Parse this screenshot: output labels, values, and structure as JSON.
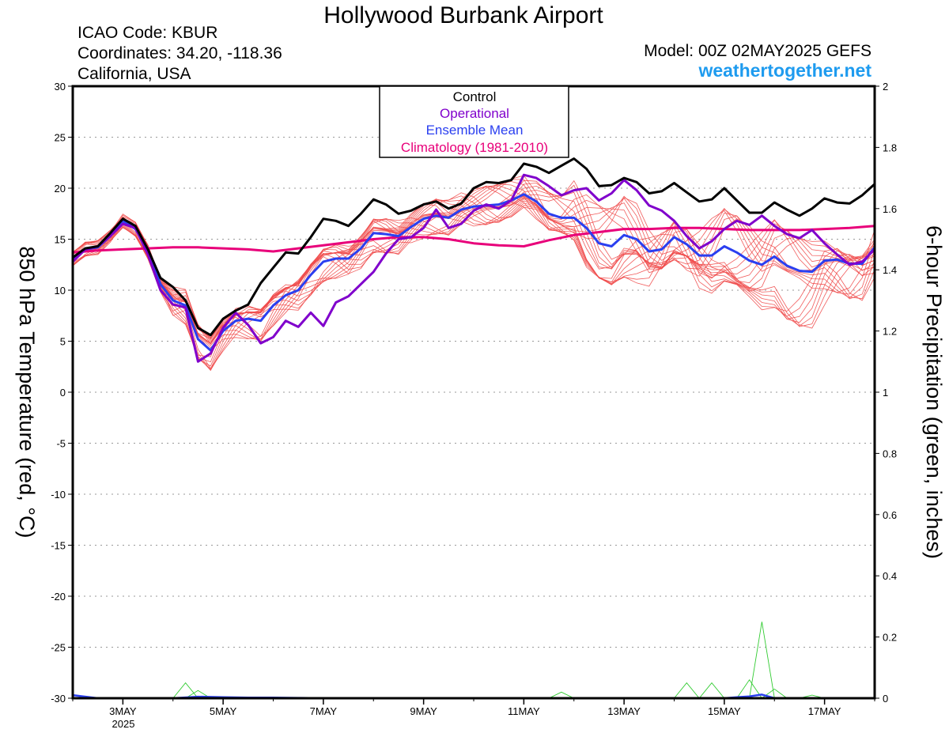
{
  "header": {
    "title": "Hollywood Burbank Airport",
    "icao": "ICAO Code: KBUR",
    "coords": "Coordinates: 34.20, -118.36",
    "region": "California, USA",
    "model": "Model: 00Z 02MAY2025 GEFS",
    "site": "weathertogether.net"
  },
  "chart_data": {
    "type": "line",
    "ylabel_left": "850 hPa Temperature (red, °C)",
    "ylabel_right": "6-hour Precipitation (green, inches)",
    "x_tick_labels": [
      "3MAY",
      "5MAY",
      "7MAY",
      "9MAY",
      "11MAY",
      "13MAY",
      "15MAY",
      "17MAY"
    ],
    "x_tick_positions_days": [
      3,
      5,
      7,
      9,
      11,
      13,
      15,
      17
    ],
    "x_year_label": "2025",
    "xlim_days": [
      2.0,
      18.0
    ],
    "ylim_left": [
      -30,
      30
    ],
    "yticks_left": [
      30,
      25,
      20,
      15,
      10,
      5,
      0,
      -5,
      -10,
      -15,
      -20,
      -25,
      -30
    ],
    "ylim_right": [
      0,
      2
    ],
    "yticks_right": [
      "2",
      "1.8",
      "1.6",
      "1.4",
      "1.2",
      "1",
      "0.8",
      "0.6",
      "0.4",
      "0.2",
      "0"
    ],
    "grid": "dotted horizontal",
    "legend": {
      "placement": "top-center",
      "entries": [
        {
          "label": "Control",
          "color": "#000000"
        },
        {
          "label": "Operational",
          "color": "#8000cc"
        },
        {
          "label": "Ensemble Mean",
          "color": "#2a3ff0"
        },
        {
          "label": "Climatology (1981-2010)",
          "color": "#e8007a"
        }
      ]
    },
    "colors": {
      "members": "#f04a4a",
      "precip": "#33cc33"
    },
    "series": [
      {
        "name": "Control",
        "x": [
          2.0,
          2.25,
          2.5,
          2.75,
          3.0,
          3.25,
          3.5,
          3.75,
          4.0,
          4.25,
          4.5,
          4.75,
          5.0,
          5.25,
          5.5,
          5.75,
          6.0,
          6.25,
          6.5,
          6.75,
          7.0,
          7.25,
          7.5,
          7.75,
          8.0,
          8.25,
          8.5,
          8.75,
          9.0,
          9.25,
          9.5,
          9.75,
          10.0,
          10.25,
          10.5,
          10.75,
          11.0,
          11.25,
          11.5,
          11.75,
          12.0,
          12.25,
          12.5,
          12.75,
          13.0,
          13.25,
          13.5,
          13.75,
          14.0,
          14.25,
          14.5,
          14.75,
          15.0,
          15.25,
          15.5,
          15.75,
          16.0,
          16.25,
          16.5,
          16.75,
          17.0,
          17.25,
          17.5,
          17.75,
          18.0
        ],
        "values": [
          13.2,
          14.1,
          14.3,
          15.6,
          17.0,
          16.3,
          14.0,
          11.2,
          10.3,
          9.0,
          6.3,
          5.6,
          7.2,
          8.0,
          8.6,
          10.7,
          12.2,
          13.7,
          13.6,
          15.2,
          17.0,
          16.8,
          16.3,
          17.5,
          18.9,
          18.4,
          17.5,
          17.8,
          18.4,
          18.7,
          18.0,
          18.5,
          20.0,
          20.6,
          20.5,
          20.8,
          22.4,
          22.1,
          21.5,
          22.2,
          22.9,
          21.9,
          20.2,
          20.3,
          21.0,
          20.6,
          19.5,
          19.7,
          20.5,
          19.6,
          18.7,
          18.9,
          20.0,
          18.8,
          17.6,
          17.6,
          18.6,
          17.9,
          17.3,
          18.0,
          19.0,
          18.6,
          18.5,
          19.3,
          20.4
        ]
      },
      {
        "name": "Operational",
        "x": [
          2.0,
          2.25,
          2.5,
          2.75,
          3.0,
          3.25,
          3.5,
          3.75,
          4.0,
          4.25,
          4.5,
          4.75,
          5.0,
          5.25,
          5.5,
          5.75,
          6.0,
          6.25,
          6.5,
          6.75,
          7.0,
          7.25,
          7.5,
          7.75,
          8.0,
          8.25,
          8.5,
          8.75,
          9.0,
          9.25,
          9.5,
          9.75,
          10.0,
          10.25,
          10.5,
          10.75,
          11.0,
          11.25,
          11.5,
          11.75,
          12.0,
          12.25,
          12.5,
          12.75,
          13.0,
          13.25,
          13.5,
          13.75,
          14.0,
          14.25,
          14.5,
          14.75,
          15.0,
          15.25,
          15.5,
          15.75,
          16.0,
          16.25,
          16.5,
          16.75,
          17.0,
          17.25,
          17.5,
          17.75,
          18.0
        ],
        "values": [
          12.8,
          14.0,
          14.3,
          15.3,
          16.5,
          16.1,
          13.5,
          10.0,
          8.6,
          8.3,
          3.0,
          3.8,
          6.3,
          7.8,
          6.6,
          4.8,
          5.4,
          7.0,
          6.4,
          7.8,
          6.5,
          8.8,
          9.4,
          10.6,
          11.8,
          13.6,
          15.0,
          15.2,
          16.1,
          17.9,
          16.1,
          16.5,
          17.8,
          18.4,
          18.0,
          18.8,
          21.3,
          21.0,
          20.2,
          19.3,
          19.8,
          20.0,
          18.8,
          19.5,
          20.8,
          19.8,
          18.3,
          17.8,
          16.8,
          15.3,
          14.1,
          14.8,
          16.0,
          16.8,
          16.4,
          17.3,
          16.3,
          15.5,
          15.1,
          15.9,
          14.6,
          13.5,
          12.5,
          12.8,
          14.0
        ]
      },
      {
        "name": "Ensemble Mean",
        "x": [
          2.0,
          2.25,
          2.5,
          2.75,
          3.0,
          3.25,
          3.5,
          3.75,
          4.0,
          4.25,
          4.5,
          4.75,
          5.0,
          5.25,
          5.5,
          5.75,
          6.0,
          6.25,
          6.5,
          6.75,
          7.0,
          7.25,
          7.5,
          7.75,
          8.0,
          8.25,
          8.5,
          8.75,
          9.0,
          9.25,
          9.5,
          9.75,
          10.0,
          10.25,
          10.5,
          10.75,
          11.0,
          11.25,
          11.5,
          11.75,
          12.0,
          12.25,
          12.5,
          12.75,
          13.0,
          13.25,
          13.5,
          13.75,
          14.0,
          14.25,
          14.5,
          14.75,
          15.0,
          15.25,
          15.5,
          15.75,
          16.0,
          16.25,
          16.5,
          16.75,
          17.0,
          17.25,
          17.5,
          17.75,
          18.0
        ],
        "values": [
          13.0,
          14.0,
          14.2,
          15.3,
          16.8,
          16.0,
          13.8,
          10.6,
          9.0,
          8.5,
          5.2,
          4.1,
          6.0,
          7.0,
          7.2,
          7.0,
          8.5,
          9.5,
          10.0,
          11.5,
          12.8,
          13.1,
          13.1,
          14.1,
          15.6,
          15.5,
          15.3,
          16.2,
          17.0,
          17.3,
          17.1,
          17.9,
          18.2,
          18.3,
          18.4,
          18.8,
          19.4,
          18.7,
          17.5,
          17.1,
          17.1,
          16.1,
          14.6,
          14.3,
          15.4,
          15.0,
          13.8,
          14.0,
          15.2,
          14.5,
          13.4,
          13.4,
          14.3,
          13.7,
          12.9,
          12.5,
          13.3,
          12.4,
          11.9,
          11.8,
          12.9,
          13.0,
          12.6,
          12.6,
          14.2
        ]
      },
      {
        "name": "Climatology (1981-2010)",
        "x": [
          2.0,
          2.5,
          3.0,
          3.5,
          4.0,
          4.5,
          5.0,
          5.5,
          6.0,
          6.5,
          7.0,
          7.5,
          8.0,
          8.5,
          9.0,
          9.5,
          10.0,
          10.5,
          11.0,
          11.5,
          12.0,
          12.5,
          13.0,
          13.5,
          14.0,
          14.5,
          15.0,
          15.5,
          16.0,
          16.5,
          17.0,
          17.5,
          18.0
        ],
        "values": [
          13.7,
          13.9,
          14.0,
          14.1,
          14.2,
          14.2,
          14.1,
          14.0,
          13.8,
          14.1,
          14.4,
          14.7,
          15.0,
          15.2,
          15.2,
          15.0,
          14.6,
          14.4,
          14.3,
          14.9,
          15.4,
          15.7,
          16.0,
          16.0,
          16.1,
          16.1,
          16.0,
          15.9,
          15.9,
          15.9,
          16.0,
          16.1,
          16.3
        ]
      },
      {
        "name": "Ensemble Mean precipitation",
        "x": [
          2.0,
          2.5,
          3.0,
          3.5,
          4.0,
          4.5,
          5.0,
          5.5,
          6.0,
          6.5,
          7.0,
          7.5,
          8.0,
          8.5,
          9.0,
          9.5,
          10.0,
          10.5,
          11.0,
          11.5,
          12.0,
          12.5,
          13.0,
          13.5,
          14.0,
          14.5,
          15.0,
          15.25,
          15.5,
          15.75,
          16.0,
          16.5,
          17.0,
          17.5,
          18.0
        ],
        "values": [
          0.01,
          0.0,
          0.0,
          0.0,
          0.0,
          0.005,
          0.003,
          0.002,
          0.002,
          0.001,
          0.0,
          0.0,
          0.0,
          0.0,
          0.0,
          0.0,
          0.0,
          0.0,
          0.0,
          0.0,
          0.0,
          0.0,
          0.0,
          0.0,
          0.0,
          0.0,
          0.0,
          0.003,
          0.006,
          0.012,
          0.0,
          0.0,
          0.0,
          0.0,
          0.0
        ]
      }
    ]
  }
}
